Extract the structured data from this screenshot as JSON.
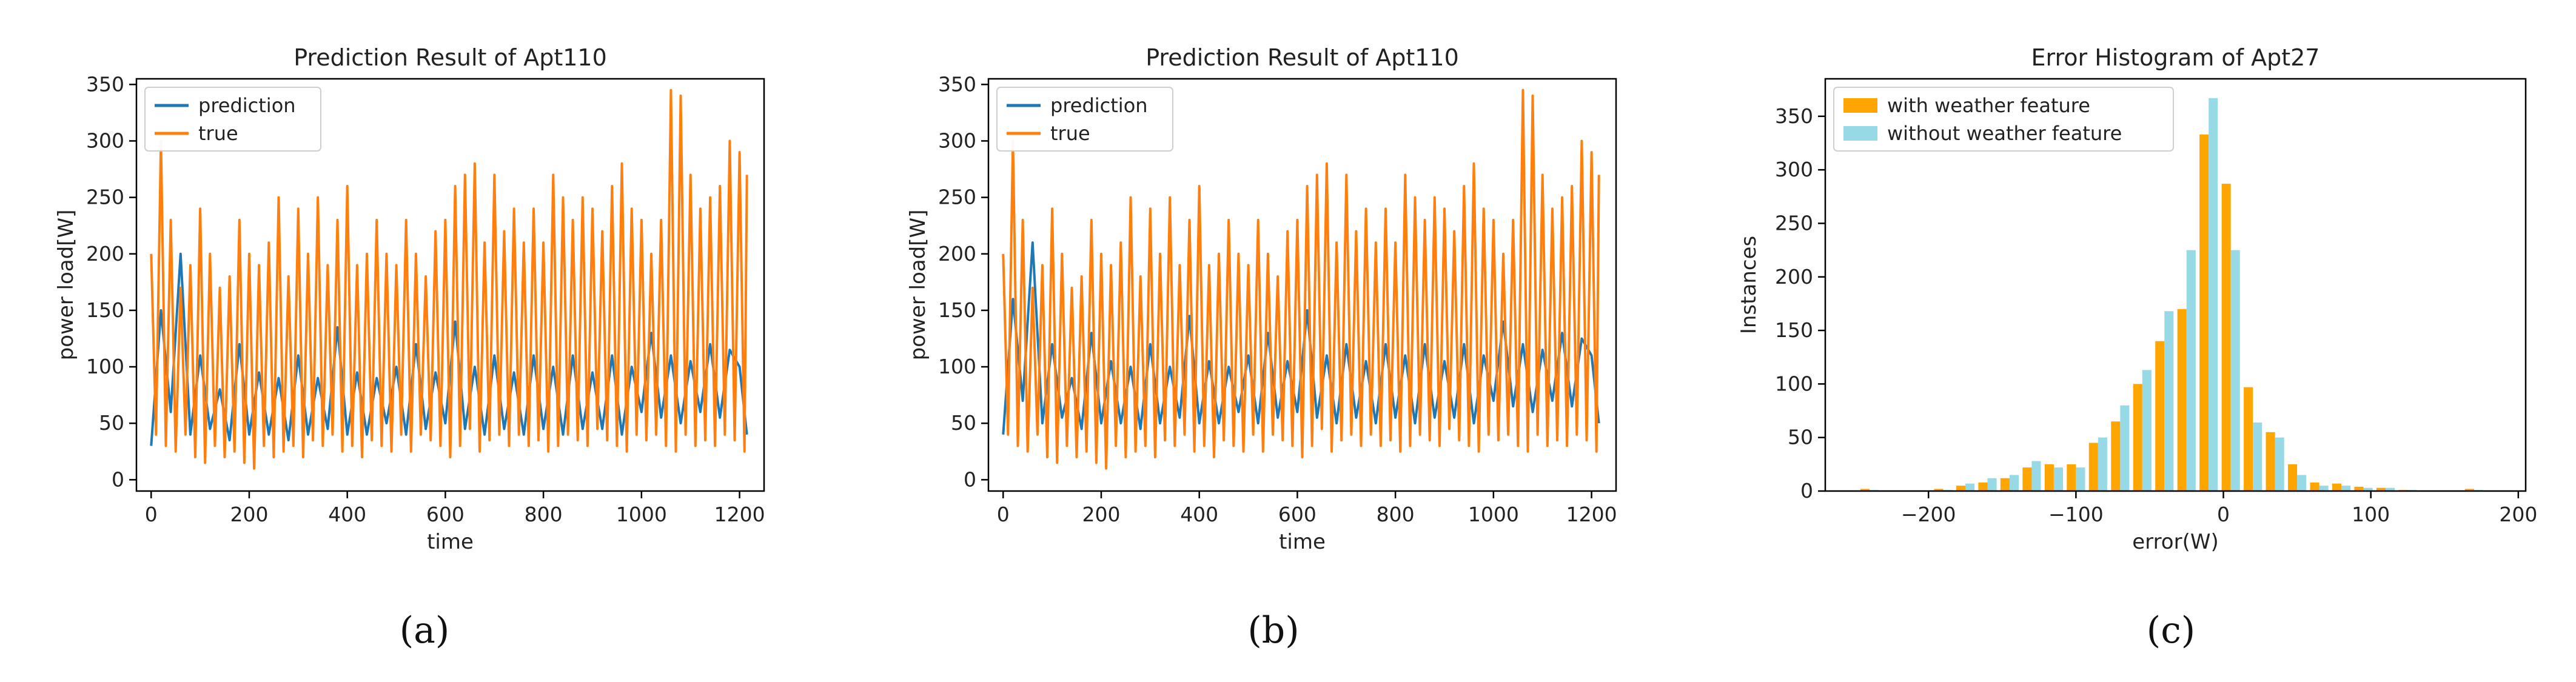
{
  "chart_data": [
    {
      "type": "line",
      "title": "Prediction Result of Apt110",
      "xlabel": "time",
      "ylabel": "power load[W]",
      "xlim": [
        -30,
        1250
      ],
      "ylim": [
        -10,
        355
      ],
      "xticks": [
        0,
        200,
        400,
        600,
        800,
        1000,
        1200
      ],
      "yticks": [
        0,
        50,
        100,
        150,
        200,
        250,
        300,
        350
      ],
      "grid": false,
      "legend": "top-left",
      "panel_label": "(a)",
      "series_meta": [
        {
          "name": "prediction",
          "color": "#1f77b4"
        },
        {
          "name": "true",
          "color": "#ff7f0e"
        }
      ],
      "series": [
        {
          "name": "prediction",
          "x": [
            0,
            20,
            40,
            60,
            80,
            100,
            120,
            140,
            160,
            180,
            200,
            220,
            240,
            260,
            280,
            300,
            320,
            340,
            360,
            380,
            400,
            420,
            440,
            460,
            480,
            500,
            520,
            540,
            560,
            580,
            600,
            620,
            640,
            660,
            680,
            700,
            720,
            740,
            760,
            780,
            800,
            820,
            840,
            860,
            880,
            900,
            920,
            940,
            960,
            980,
            1000,
            1020,
            1040,
            1060,
            1080,
            1100,
            1120,
            1140,
            1160,
            1180,
            1200,
            1215
          ],
          "y": [
            30,
            150,
            60,
            200,
            40,
            110,
            45,
            80,
            35,
            120,
            40,
            95,
            40,
            90,
            35,
            110,
            40,
            90,
            45,
            135,
            40,
            95,
            40,
            90,
            50,
            100,
            40,
            120,
            45,
            95,
            50,
            140,
            45,
            100,
            40,
            110,
            45,
            95,
            40,
            110,
            45,
            100,
            40,
            110,
            45,
            95,
            45,
            110,
            40,
            100,
            60,
            130,
            55,
            110,
            50,
            105,
            60,
            120,
            55,
            115,
            100,
            40
          ]
        },
        {
          "name": "true",
          "x": [
            0,
            10,
            20,
            30,
            40,
            50,
            60,
            70,
            80,
            90,
            100,
            110,
            120,
            130,
            140,
            150,
            160,
            170,
            180,
            190,
            200,
            210,
            220,
            230,
            240,
            250,
            260,
            270,
            280,
            290,
            300,
            310,
            320,
            330,
            340,
            350,
            360,
            370,
            380,
            390,
            400,
            410,
            420,
            430,
            440,
            450,
            460,
            470,
            480,
            490,
            500,
            510,
            520,
            530,
            540,
            550,
            560,
            570,
            580,
            590,
            600,
            610,
            620,
            630,
            640,
            650,
            660,
            670,
            680,
            690,
            700,
            710,
            720,
            730,
            740,
            750,
            760,
            770,
            780,
            790,
            800,
            810,
            820,
            830,
            840,
            850,
            860,
            870,
            880,
            890,
            900,
            910,
            920,
            930,
            940,
            950,
            960,
            970,
            980,
            990,
            1000,
            1010,
            1020,
            1030,
            1040,
            1050,
            1060,
            1070,
            1080,
            1090,
            1100,
            1110,
            1120,
            1130,
            1140,
            1150,
            1160,
            1170,
            1180,
            1190,
            1200,
            1210,
            1215
          ],
          "y": [
            200,
            40,
            300,
            30,
            230,
            25,
            170,
            40,
            190,
            20,
            240,
            15,
            200,
            30,
            170,
            20,
            180,
            25,
            230,
            15,
            200,
            10,
            190,
            30,
            210,
            20,
            250,
            25,
            180,
            30,
            240,
            20,
            200,
            35,
            250,
            30,
            190,
            40,
            230,
            25,
            260,
            30,
            190,
            20,
            200,
            35,
            230,
            30,
            200,
            25,
            190,
            40,
            230,
            25,
            200,
            40,
            180,
            35,
            220,
            30,
            230,
            20,
            260,
            30,
            270,
            45,
            280,
            25,
            210,
            35,
            270,
            40,
            220,
            30,
            240,
            40,
            210,
            30,
            240,
            35,
            210,
            25,
            270,
            30,
            250,
            40,
            230,
            35,
            250,
            30,
            240,
            45,
            220,
            35,
            260,
            30,
            280,
            25,
            240,
            40,
            230,
            35,
            200,
            40,
            230,
            30,
            345,
            25,
            340,
            40,
            270,
            30,
            240,
            35,
            250,
            30,
            260,
            40,
            300,
            35,
            290,
            25,
            270
          ]
        }
      ]
    },
    {
      "type": "line",
      "title": "Prediction Result of Apt110",
      "xlabel": "time",
      "ylabel": "power load[W]",
      "xlim": [
        -30,
        1250
      ],
      "ylim": [
        -10,
        355
      ],
      "xticks": [
        0,
        200,
        400,
        600,
        800,
        1000,
        1200
      ],
      "yticks": [
        0,
        50,
        100,
        150,
        200,
        250,
        300,
        350
      ],
      "grid": false,
      "legend": "top-left",
      "panel_label": "(b)",
      "series_meta": [
        {
          "name": "prediction",
          "color": "#1f77b4"
        },
        {
          "name": "true",
          "color": "#ff7f0e"
        }
      ],
      "series": [
        {
          "name": "prediction",
          "x": [
            0,
            20,
            40,
            60,
            80,
            100,
            120,
            140,
            160,
            180,
            200,
            220,
            240,
            260,
            280,
            300,
            320,
            340,
            360,
            380,
            400,
            420,
            440,
            460,
            480,
            500,
            520,
            540,
            560,
            580,
            600,
            620,
            640,
            660,
            680,
            700,
            720,
            740,
            760,
            780,
            800,
            820,
            840,
            860,
            880,
            900,
            920,
            940,
            960,
            980,
            1000,
            1020,
            1040,
            1060,
            1080,
            1100,
            1120,
            1140,
            1160,
            1180,
            1200,
            1215
          ],
          "y": [
            40,
            160,
            70,
            210,
            50,
            120,
            55,
            90,
            45,
            130,
            50,
            105,
            50,
            100,
            45,
            120,
            50,
            100,
            55,
            145,
            50,
            105,
            50,
            100,
            60,
            110,
            50,
            130,
            55,
            105,
            60,
            150,
            55,
            110,
            50,
            120,
            55,
            105,
            50,
            120,
            55,
            110,
            50,
            120,
            55,
            105,
            55,
            120,
            50,
            110,
            70,
            140,
            65,
            120,
            60,
            115,
            70,
            130,
            65,
            125,
            110,
            50
          ]
        },
        {
          "name": "true",
          "x": [
            0,
            10,
            20,
            30,
            40,
            50,
            60,
            70,
            80,
            90,
            100,
            110,
            120,
            130,
            140,
            150,
            160,
            170,
            180,
            190,
            200,
            210,
            220,
            230,
            240,
            250,
            260,
            270,
            280,
            290,
            300,
            310,
            320,
            330,
            340,
            350,
            360,
            370,
            380,
            390,
            400,
            410,
            420,
            430,
            440,
            450,
            460,
            470,
            480,
            490,
            500,
            510,
            520,
            530,
            540,
            550,
            560,
            570,
            580,
            590,
            600,
            610,
            620,
            630,
            640,
            650,
            660,
            670,
            680,
            690,
            700,
            710,
            720,
            730,
            740,
            750,
            760,
            770,
            780,
            790,
            800,
            810,
            820,
            830,
            840,
            850,
            860,
            870,
            880,
            890,
            900,
            910,
            920,
            930,
            940,
            950,
            960,
            970,
            980,
            990,
            1000,
            1010,
            1020,
            1030,
            1040,
            1050,
            1060,
            1070,
            1080,
            1090,
            1100,
            1110,
            1120,
            1130,
            1140,
            1150,
            1160,
            1170,
            1180,
            1190,
            1200,
            1210,
            1215
          ],
          "y": [
            200,
            40,
            300,
            30,
            230,
            25,
            170,
            40,
            190,
            20,
            240,
            15,
            200,
            30,
            170,
            20,
            180,
            25,
            230,
            15,
            200,
            10,
            190,
            30,
            210,
            20,
            250,
            25,
            180,
            30,
            240,
            20,
            200,
            35,
            250,
            30,
            190,
            40,
            230,
            25,
            260,
            30,
            190,
            20,
            200,
            35,
            230,
            30,
            200,
            25,
            190,
            40,
            230,
            25,
            200,
            40,
            180,
            35,
            220,
            30,
            230,
            20,
            260,
            30,
            270,
            45,
            280,
            25,
            210,
            35,
            270,
            40,
            220,
            30,
            240,
            40,
            210,
            30,
            240,
            35,
            210,
            25,
            270,
            30,
            250,
            40,
            230,
            35,
            250,
            30,
            240,
            45,
            220,
            35,
            260,
            30,
            280,
            25,
            240,
            40,
            230,
            35,
            200,
            40,
            230,
            30,
            345,
            25,
            340,
            40,
            270,
            30,
            240,
            35,
            250,
            30,
            260,
            40,
            300,
            35,
            290,
            25,
            270
          ]
        }
      ]
    },
    {
      "type": "bar",
      "title": "Error Histogram of Apt27",
      "xlabel": "error(W)",
      "ylabel": "Instances",
      "xlim": [
        -270,
        205
      ],
      "ylim": [
        0,
        385
      ],
      "xticks": [
        -200,
        -100,
        0,
        100,
        200
      ],
      "yticks": [
        0,
        50,
        100,
        150,
        200,
        250,
        300,
        350
      ],
      "grid": false,
      "legend": "top-left",
      "panel_label": "(c)",
      "bin_centers": [
        -240,
        -190,
        -175,
        -160,
        -145,
        -130,
        -115,
        -100,
        -85,
        -70,
        -55,
        -40,
        -25,
        -10,
        5,
        20,
        35,
        50,
        65,
        80,
        95,
        110,
        125,
        170
      ],
      "series": [
        {
          "name": "with weather feature",
          "color": "#ffa500",
          "values": [
            2,
            2,
            5,
            8,
            12,
            22,
            25,
            25,
            45,
            65,
            100,
            140,
            170,
            333,
            287,
            97,
            55,
            25,
            8,
            7,
            4,
            3,
            1,
            2
          ]
        },
        {
          "name": "without weather feature",
          "color": "#98d9e6",
          "values": [
            1,
            1,
            7,
            12,
            15,
            28,
            22,
            22,
            50,
            80,
            113,
            168,
            225,
            367,
            225,
            64,
            50,
            15,
            5,
            5,
            3,
            3,
            1,
            1
          ]
        }
      ]
    }
  ]
}
